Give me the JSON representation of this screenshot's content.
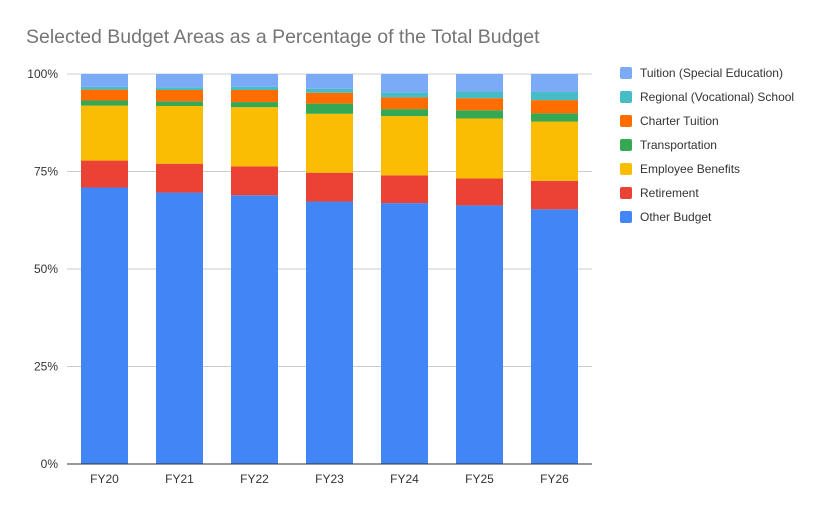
{
  "chart_data": {
    "type": "bar",
    "stacked": true,
    "normalized": true,
    "title": "Selected Budget Areas as a Percentage of the Total Budget",
    "xlabel": "",
    "ylabel": "",
    "ylim": [
      0,
      100
    ],
    "y_ticks": [
      "0%",
      "25%",
      "50%",
      "75%",
      "100%"
    ],
    "grid": true,
    "legend_position": "right",
    "categories": [
      "FY20",
      "FY21",
      "FY22",
      "FY23",
      "FY24",
      "FY25",
      "FY26"
    ],
    "series": [
      {
        "name": "Other Budget",
        "color": "#4285f4",
        "values": [
          70.9,
          69.6,
          68.9,
          67.3,
          66.9,
          66.3,
          65.3
        ]
      },
      {
        "name": "Retirement",
        "color": "#ea4335",
        "values": [
          6.9,
          7.4,
          7.4,
          7.4,
          7.1,
          6.9,
          7.3
        ]
      },
      {
        "name": "Employee Benefits",
        "color": "#fbbc04",
        "values": [
          14.1,
          14.8,
          15.2,
          15.1,
          15.2,
          15.4,
          15.2
        ]
      },
      {
        "name": "Transportation",
        "color": "#34a853",
        "values": [
          1.3,
          1.2,
          1.3,
          2.6,
          1.8,
          2.1,
          2.1
        ]
      },
      {
        "name": "Charter Tuition",
        "color": "#ff6d01",
        "values": [
          2.8,
          2.9,
          3.1,
          2.8,
          3.0,
          3.1,
          3.4
        ]
      },
      {
        "name": "Regional (Vocational) School",
        "color": "#46bdc6",
        "values": [
          0.7,
          0.7,
          0.8,
          1.0,
          1.3,
          1.7,
          2.1
        ]
      },
      {
        "name": "Tuition (Special Education)",
        "color": "#7baaf7",
        "values": [
          3.3,
          3.4,
          3.3,
          3.8,
          4.7,
          4.5,
          4.6
        ]
      }
    ]
  }
}
